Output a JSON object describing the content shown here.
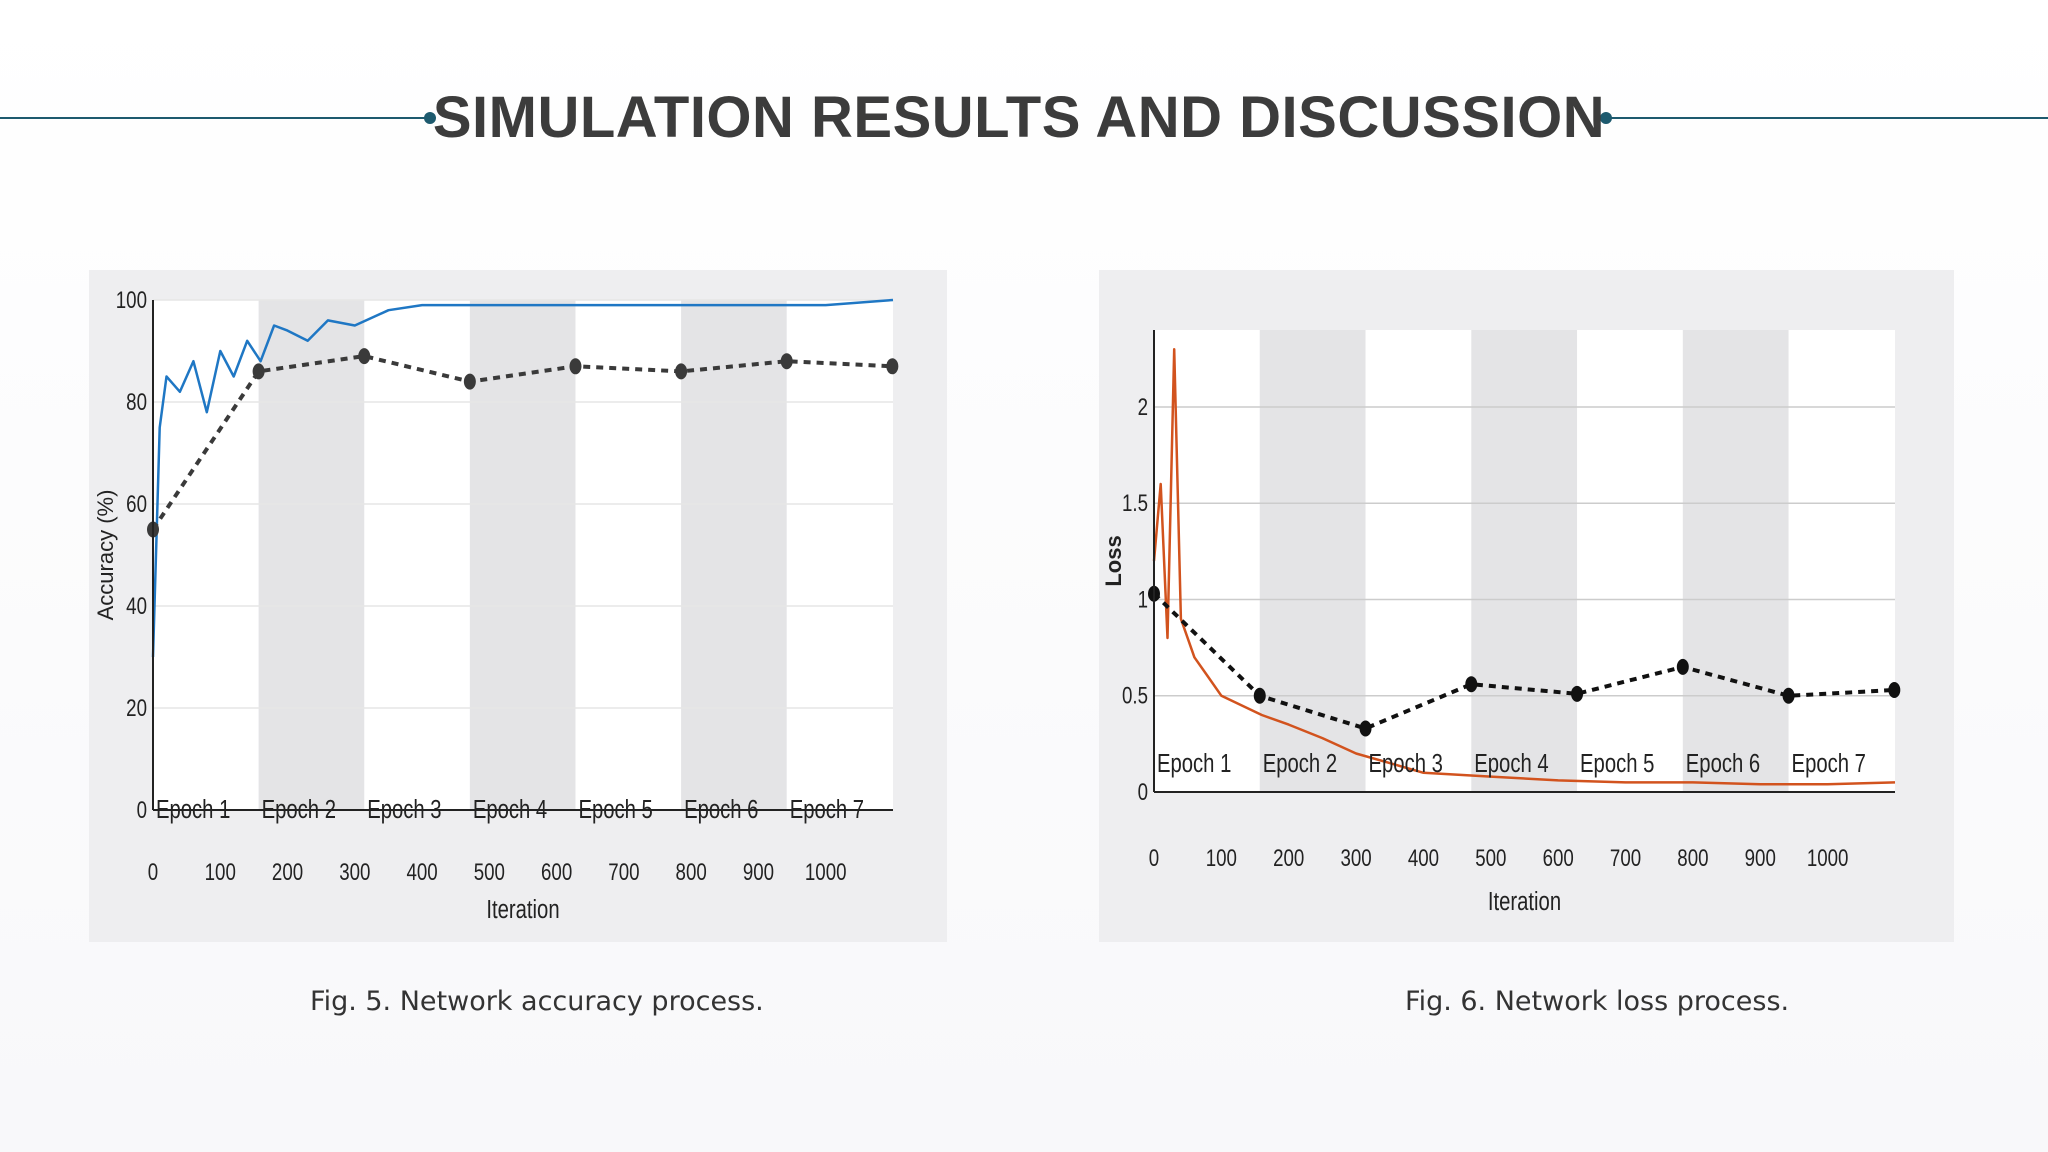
{
  "slide": {
    "title": "SIMULATION RESULTS AND DISCUSSION",
    "accent_color": "#1d5a6e",
    "title_color": "#3c3c3c"
  },
  "captions": {
    "accuracy": "Fig. 5. Network accuracy process.",
    "loss": "Fig. 6. Network loss process."
  },
  "chart_data": [
    {
      "type": "line",
      "ylabel": "Accuracy (%)",
      "xlabel": "Iteration",
      "xlim": [
        0,
        1100
      ],
      "ylim": [
        0,
        100
      ],
      "x_ticks": [
        0,
        100,
        200,
        300,
        400,
        500,
        600,
        700,
        800,
        900,
        1000
      ],
      "y_ticks": [
        0,
        20,
        40,
        60,
        80,
        100
      ],
      "grid": true,
      "epoch_labels": [
        "Epoch 1",
        "Epoch 2",
        "Epoch 3",
        "Epoch 4",
        "Epoch 5",
        "Epoch 6",
        "Epoch 7"
      ],
      "epoch_bounds": [
        0,
        157,
        314,
        471,
        628,
        785,
        942,
        1099
      ],
      "series": [
        {
          "color": "#1f77c4",
          "style": "solid",
          "role": "training",
          "x": [
            0,
            10,
            20,
            40,
            60,
            80,
            100,
            120,
            140,
            160,
            180,
            200,
            230,
            260,
            300,
            350,
            400,
            500,
            600,
            700,
            800,
            900,
            1000,
            1100
          ],
          "y": [
            30,
            75,
            85,
            82,
            88,
            78,
            90,
            85,
            92,
            88,
            95,
            94,
            92,
            96,
            95,
            98,
            99,
            99,
            99,
            99,
            99,
            99,
            99,
            100
          ]
        },
        {
          "color": "#3a3a3a",
          "style": "dashed",
          "role": "validation",
          "x": [
            0,
            157,
            314,
            471,
            628,
            785,
            942,
            1099
          ],
          "y": [
            55,
            86,
            89,
            84,
            87,
            86,
            88,
            87
          ]
        }
      ]
    },
    {
      "type": "line",
      "ylabel": "Loss",
      "xlabel": "Iteration",
      "xlim": [
        0,
        1100
      ],
      "ylim": [
        0,
        2.4
      ],
      "x_ticks": [
        0,
        100,
        200,
        300,
        400,
        500,
        600,
        700,
        800,
        900,
        1000
      ],
      "y_ticks": [
        0,
        0.5,
        1,
        1.5,
        2
      ],
      "y_tick_labels": [
        "0",
        "0.5",
        "1",
        "1.5",
        "2"
      ],
      "grid": true,
      "epoch_labels": [
        "Epoch 1",
        "Epoch 2",
        "Epoch 3",
        "Epoch 4",
        "Epoch 5",
        "Epoch 6",
        "Epoch 7"
      ],
      "epoch_bounds": [
        0,
        157,
        314,
        471,
        628,
        785,
        942,
        1099
      ],
      "series": [
        {
          "color": "#d2531e",
          "style": "solid",
          "role": "training",
          "x": [
            0,
            10,
            20,
            30,
            40,
            60,
            80,
            100,
            130,
            160,
            200,
            250,
            300,
            350,
            400,
            500,
            600,
            700,
            800,
            900,
            1000,
            1100
          ],
          "y": [
            1.2,
            1.6,
            0.8,
            2.3,
            0.9,
            0.7,
            0.6,
            0.5,
            0.45,
            0.4,
            0.35,
            0.28,
            0.2,
            0.15,
            0.1,
            0.08,
            0.06,
            0.05,
            0.05,
            0.04,
            0.04,
            0.05
          ]
        },
        {
          "color": "#111111",
          "style": "dashed",
          "role": "validation",
          "x": [
            0,
            157,
            314,
            471,
            628,
            785,
            942,
            1099
          ],
          "y": [
            1.03,
            0.5,
            0.33,
            0.56,
            0.51,
            0.65,
            0.5,
            0.53
          ]
        }
      ]
    }
  ]
}
